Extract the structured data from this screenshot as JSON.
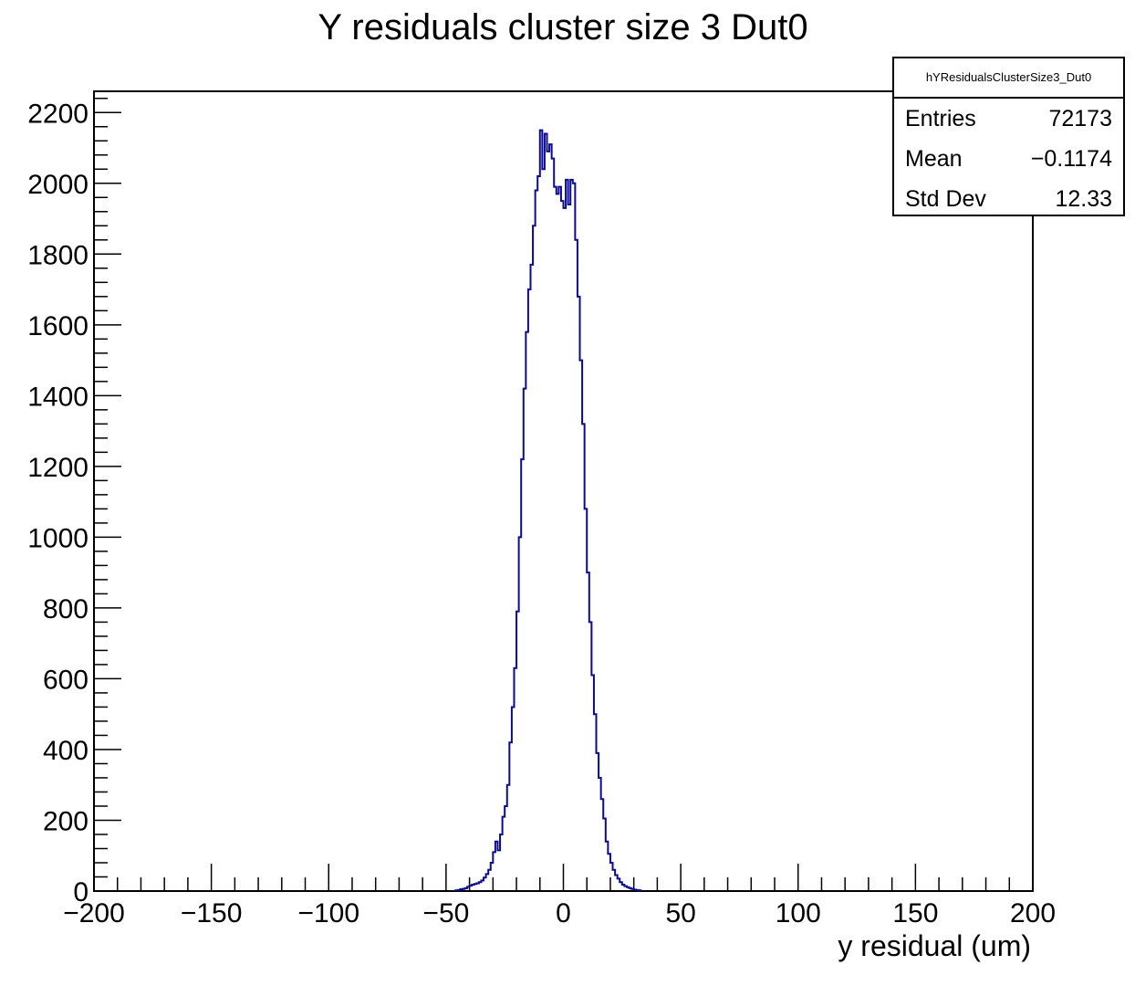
{
  "chart_data": {
    "type": "histogram",
    "title": "Y residuals cluster size 3 Dut0",
    "xlabel": "y residual (um)",
    "ylabel": "",
    "xlim": [
      -200,
      200
    ],
    "ylim": [
      0,
      2260
    ],
    "x_ticks": [
      -200,
      -150,
      -100,
      -50,
      0,
      50,
      100,
      150,
      200
    ],
    "x_tick_labels": [
      "−200",
      "−150",
      "−100",
      "−50",
      "0",
      "50",
      "100",
      "150",
      "200"
    ],
    "y_ticks": [
      0,
      200,
      400,
      600,
      800,
      1000,
      1200,
      1400,
      1600,
      1800,
      2000,
      2200
    ],
    "y_tick_labels": [
      "0",
      "200",
      "400",
      "600",
      "800",
      "1000",
      "1200",
      "1400",
      "1600",
      "1800",
      "2000",
      "2200"
    ],
    "bin_width": 1,
    "bins_start": -46,
    "counts": [
      2,
      3,
      5,
      6,
      8,
      12,
      15,
      18,
      20,
      22,
      25,
      30,
      38,
      48,
      60,
      80,
      110,
      140,
      115,
      160,
      210,
      240,
      300,
      420,
      520,
      630,
      790,
      1000,
      1220,
      1420,
      1580,
      1700,
      1770,
      1880,
      1980,
      2020,
      2150,
      2040,
      2140,
      2090,
      2110,
      2070,
      1990,
      1970,
      1990,
      1950,
      1930,
      2010,
      1940,
      2010,
      2000,
      1840,
      1680,
      1500,
      1320,
      1080,
      900,
      760,
      610,
      500,
      390,
      320,
      260,
      205,
      140,
      105,
      80,
      60,
      45,
      35,
      25,
      18,
      14,
      11,
      8,
      6,
      4,
      3,
      2
    ],
    "color": "#0b0b8c",
    "grid": false,
    "legend": "none"
  },
  "stats": {
    "name": "hYResidualsClusterSize3_Dut0",
    "rows": [
      {
        "label": "Entries",
        "value": "72173"
      },
      {
        "label": "Mean",
        "value": "−0.1174"
      },
      {
        "label": "Std Dev",
        "value": "12.33"
      }
    ]
  }
}
